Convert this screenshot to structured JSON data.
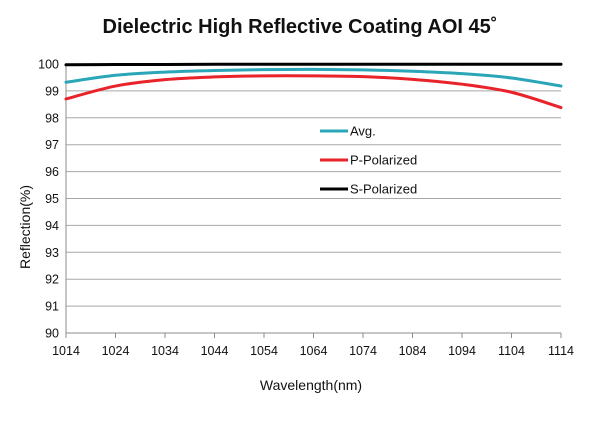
{
  "chart_data": {
    "type": "line",
    "title": "Dielectric High Reflective Coating AOI 45˚",
    "xlabel": "Wavelength(nm)",
    "ylabel": "Reflection(%)",
    "xlim": [
      1014,
      1114
    ],
    "ylim": [
      90,
      100
    ],
    "xticks": [
      1014,
      1024,
      1034,
      1044,
      1054,
      1064,
      1074,
      1084,
      1094,
      1104,
      1114
    ],
    "yticks": [
      90,
      91,
      92,
      93,
      94,
      95,
      96,
      97,
      98,
      99,
      100
    ],
    "grid": "horizontal",
    "legend_position": "center-right",
    "x": [
      1014,
      1024,
      1034,
      1044,
      1054,
      1064,
      1074,
      1084,
      1094,
      1104,
      1114
    ],
    "series": [
      {
        "name": "Avg.",
        "color": "#2aa6b8",
        "values": [
          99.32,
          99.58,
          99.7,
          99.76,
          99.79,
          99.8,
          99.78,
          99.73,
          99.64,
          99.48,
          99.18
        ]
      },
      {
        "name": "P-Polarized",
        "color": "#e8232a",
        "values": [
          98.7,
          99.18,
          99.42,
          99.52,
          99.56,
          99.56,
          99.53,
          99.43,
          99.25,
          98.95,
          98.38
        ]
      },
      {
        "name": "S-Polarized",
        "color": "#000000",
        "values": [
          99.97,
          99.98,
          99.98,
          99.99,
          99.99,
          99.99,
          99.99,
          99.99,
          99.99,
          99.99,
          99.99
        ]
      }
    ]
  }
}
